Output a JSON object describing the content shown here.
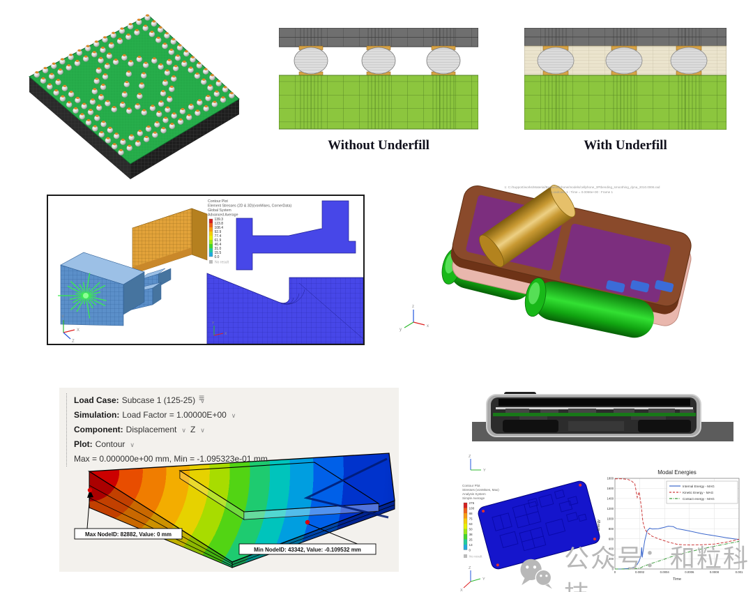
{
  "underfill": {
    "without_label": "Without Underfill",
    "with_label": "With Underfill"
  },
  "axis_labels": {
    "x": "X",
    "y": "Y",
    "z": "Z"
  },
  "hyperview": {
    "legend_title": "Contour Plot",
    "legend_subtitle": "Element Stresses (2D & 3D)(vonMises, CornerData)",
    "legend_system": "Global System",
    "legend_average": "Advanced Average",
    "no_result": "No result",
    "legend": {
      "values": [
        "139.3",
        "123.8",
        "108.4",
        "92.9",
        "77.4",
        "61.9",
        "46.4",
        "31.0",
        "15.5",
        "0.0"
      ],
      "colors": [
        "#d42020",
        "#ee6118",
        "#f89b10",
        "#f5ce0a",
        "#e8f000",
        "#9ce818",
        "#44d62c",
        "#20cc9c",
        "#22aadd",
        "#2244dd"
      ]
    }
  },
  "bending": {
    "header_line1": "1: C:/Support/works/Material/Buzia/cellphone/models/cellphone_3Ptbending_smoothing_dyna_2010.0006.rad",
    "header_line2": "Loadcase 1 : Time = 0.0066e+00 : Frame 1",
    "axis": {
      "x": "x",
      "y": "y",
      "z": "z"
    }
  },
  "simsolid": {
    "rows": [
      {
        "label": "Load Case:",
        "value": "Subcase 1 (125-25)"
      },
      {
        "label": "Simulation:",
        "value": "Load Factor = 1.00000E+00"
      },
      {
        "label": "Component:",
        "value": "Displacement",
        "value2": "Z"
      },
      {
        "label": "Plot:",
        "value": "Contour"
      }
    ],
    "summary": "Max = 0.000000e+00 mm, Min = -1.095323e-01 mm",
    "annotation_max": "Max NodeID: 82882, Value: 0 mm",
    "annotation_min": "Min NodeID: 43342, Value: -0.109532 mm"
  },
  "pcb": {
    "legend_title": "Contour Plot",
    "legend_subtitle": "Stresses (vonMises, Max)",
    "legend_system": "Analysis System",
    "legend_average": "Simple Average",
    "no_result": "No result",
    "legend": {
      "values": [
        "275",
        "100",
        "88",
        "75",
        "63",
        "50",
        "38",
        "25",
        "13",
        "0"
      ],
      "colors": [
        "#d42020",
        "#ee6118",
        "#f89b10",
        "#f5ce0a",
        "#e8f000",
        "#9ce818",
        "#44d62c",
        "#20cc9c",
        "#22aadd",
        "#2244dd"
      ]
    }
  },
  "chart_data": {
    "type": "line",
    "title": "Modal Energies",
    "xlabel": "Time",
    "ylabel": "Energy",
    "xlim": [
      0,
      0.001
    ],
    "ylim": [
      0,
      1800
    ],
    "grid": true,
    "legend_position": "top-right",
    "xticks": [
      0,
      0.0002,
      0.0004,
      0.0006,
      0.0008,
      0.001
    ],
    "xtick_labels": [
      "0",
      "0.0002",
      "0.0004",
      "0.0006",
      "0.0008",
      "0.001"
    ],
    "yticks": [
      0,
      200,
      400,
      600,
      800,
      1000,
      1200,
      1400,
      1600,
      1800
    ],
    "x": [
      0,
      5e-05,
      0.0001,
      0.00013,
      0.00016,
      0.00018,
      0.000195,
      0.00021,
      0.000215,
      0.00022,
      0.000225,
      0.00024,
      0.00026,
      0.00028,
      0.0003,
      0.00035,
      0.0004,
      0.00043,
      0.00047,
      0.0005,
      0.00055,
      0.0006,
      0.0007,
      0.0008,
      0.0009,
      0.001
    ],
    "series": [
      {
        "name": "Internal Energy - MAG",
        "color": "#3a66cc",
        "dash": "",
        "values": [
          0,
          0,
          8,
          20,
          45,
          90,
          160,
          260,
          430,
          230,
          320,
          560,
          760,
          810,
          795,
          800,
          830,
          850,
          840,
          800,
          780,
          755,
          700,
          660,
          620,
          585
        ]
      },
      {
        "name": "Kinetic Energy - MAG",
        "color": "#cc3a3a",
        "dash": "4,2",
        "values": [
          1790,
          1792,
          1780,
          1755,
          1690,
          1420,
          1530,
          1280,
          1180,
          1050,
          940,
          800,
          720,
          690,
          650,
          600,
          560,
          535,
          510,
          490,
          480,
          478,
          482,
          495,
          535,
          590
        ]
      },
      {
        "name": "Contact energy - MAG",
        "color": "#3a9a3a",
        "dash": "5,1.5,1,1.5",
        "values": [
          0,
          0,
          0,
          2,
          5,
          10,
          18,
          25,
          32,
          40,
          48,
          62,
          80,
          95,
          115,
          155,
          195,
          225,
          255,
          280,
          310,
          340,
          400,
          452,
          500,
          548
        ]
      }
    ]
  },
  "watermark": {
    "text": "公众号：和粒科技"
  }
}
